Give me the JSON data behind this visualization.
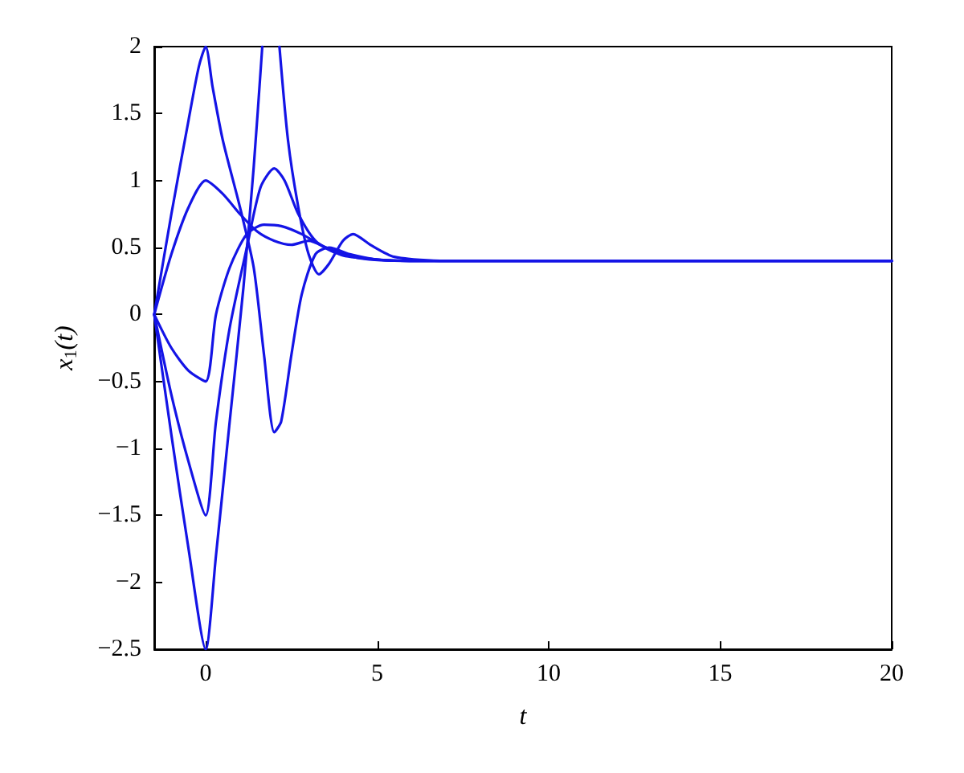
{
  "chart_data": {
    "type": "line",
    "xlabel": "t",
    "ylabel": "x$_{1}$(t)",
    "xlim": [
      -1.5,
      20
    ],
    "xticks": [
      0,
      5,
      10,
      15,
      20
    ],
    "ylim": [
      -2.5,
      2
    ],
    "yticks": [
      -2.5,
      -2,
      -1.5,
      -1,
      -0.5,
      0,
      0.5,
      1,
      1.5,
      2
    ],
    "grid": false,
    "marker": "none",
    "line_style": "solid",
    "series": [
      {
        "color": "#1414e6",
        "x": [
          -1.5,
          -1,
          -0.5,
          -0.2,
          0,
          0.2,
          0.5,
          1,
          1.4,
          1.7,
          2,
          2.2,
          2.5,
          2.8,
          3.2,
          3.6,
          4.2,
          5,
          6,
          20
        ],
        "values": [
          0,
          0.75,
          1.45,
          1.85,
          2,
          1.7,
          1.3,
          0.8,
          0.35,
          -0.3,
          -0.88,
          -0.8,
          -0.3,
          0.15,
          0.45,
          0.5,
          0.45,
          0.41,
          0.4,
          0.4
        ]
      },
      {
        "color": "#1414e6",
        "x": [
          -1.5,
          -1,
          -0.5,
          0,
          0.5,
          1,
          1.5,
          2,
          2.5,
          3,
          3.5,
          4,
          5,
          6,
          20
        ],
        "values": [
          0,
          0.45,
          0.8,
          1,
          0.9,
          0.75,
          0.62,
          0.55,
          0.52,
          0.55,
          0.5,
          0.44,
          0.41,
          0.4,
          0.4
        ]
      },
      {
        "color": "#1414e6",
        "x": [
          -1.5,
          -1,
          -0.5,
          0,
          0.3,
          0.7,
          1.2,
          1.7,
          2.2,
          2.8,
          3.5,
          4.5,
          6,
          20
        ],
        "values": [
          0,
          -0.25,
          -0.42,
          -0.5,
          0,
          0.35,
          0.6,
          0.67,
          0.66,
          0.6,
          0.5,
          0.42,
          0.4,
          0.4
        ]
      },
      {
        "color": "#1414e6",
        "x": [
          -1.5,
          -1,
          -0.5,
          0,
          0.3,
          0.7,
          1.2,
          1.6,
          2,
          2.3,
          2.7,
          3.2,
          3.8,
          5,
          6,
          20
        ],
        "values": [
          0,
          -0.6,
          -1.1,
          -1.5,
          -0.8,
          -0.1,
          0.5,
          0.95,
          1.09,
          1,
          0.75,
          0.55,
          0.46,
          0.41,
          0.4,
          0.4
        ]
      },
      {
        "color": "#1414e6",
        "x": [
          -1.5,
          -1,
          -0.5,
          0,
          0.3,
          0.7,
          1.1,
          1.4,
          1.65,
          1.9,
          2.15,
          2.4,
          2.7,
          3,
          3.3,
          3.6,
          4,
          4.3,
          4.8,
          5.5,
          7,
          20
        ],
        "values": [
          0,
          -0.9,
          -1.75,
          -2.5,
          -1.8,
          -0.8,
          0.2,
          1.1,
          2,
          null,
          2,
          1.3,
          0.8,
          0.45,
          0.3,
          0.38,
          0.55,
          0.6,
          0.52,
          0.43,
          0.4,
          0.4
        ]
      }
    ]
  }
}
